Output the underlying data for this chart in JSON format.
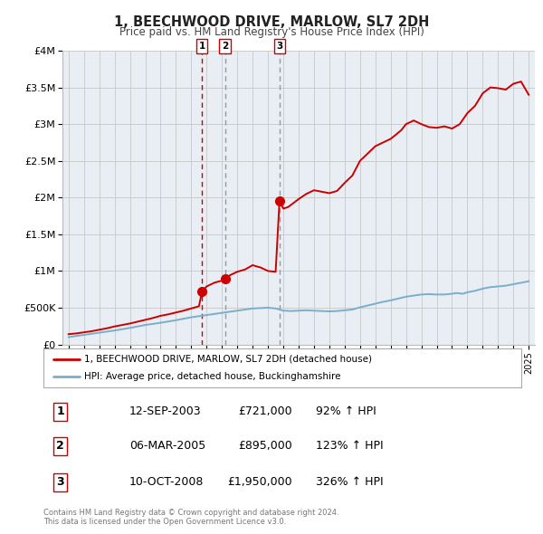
{
  "title": "1, BEECHWOOD DRIVE, MARLOW, SL7 2DH",
  "subtitle": "Price paid vs. HM Land Registry's House Price Index (HPI)",
  "legend_line1": "1, BEECHWOOD DRIVE, MARLOW, SL7 2DH (detached house)",
  "legend_line2": "HPI: Average price, detached house, Buckinghamshire",
  "red_line_color": "#cc0000",
  "blue_line_color": "#7aaecc",
  "grid_color": "#cccccc",
  "plot_bg_color": "#e8eef4",
  "ylim": [
    0,
    4000000
  ],
  "yticks": [
    0,
    500000,
    1000000,
    1500000,
    2000000,
    2500000,
    3000000,
    3500000,
    4000000
  ],
  "ytick_labels": [
    "£0",
    "£500K",
    "£1M",
    "£1.5M",
    "£2M",
    "£2.5M",
    "£3M",
    "£3.5M",
    "£4M"
  ],
  "xlim_start": 1994.6,
  "xlim_end": 2025.4,
  "transactions": [
    {
      "num": 1,
      "date": "12-SEP-2003",
      "price": 721000,
      "price_str": "£721,000",
      "pct": "92%",
      "x": 2003.7
    },
    {
      "num": 2,
      "date": "06-MAR-2005",
      "price": 895000,
      "price_str": "£895,000",
      "pct": "123%",
      "x": 2005.2
    },
    {
      "num": 3,
      "date": "10-OCT-2008",
      "price": 1950000,
      "price_str": "£1,950,000",
      "pct": "326%",
      "x": 2008.75
    }
  ],
  "footer_line1": "Contains HM Land Registry data © Crown copyright and database right 2024.",
  "footer_line2": "This data is licensed under the Open Government Licence v3.0.",
  "red_line_x": [
    1995.0,
    1995.5,
    1996.0,
    1996.5,
    1997.0,
    1997.5,
    1998.0,
    1998.5,
    1999.0,
    1999.5,
    2000.0,
    2000.5,
    2001.0,
    2001.5,
    2002.0,
    2002.5,
    2003.0,
    2003.5,
    2003.7,
    2004.0,
    2004.5,
    2005.0,
    2005.2,
    2005.5,
    2006.0,
    2006.5,
    2007.0,
    2007.3,
    2007.5,
    2008.0,
    2008.5,
    2008.75,
    2009.0,
    2009.3,
    2009.5,
    2010.0,
    2010.5,
    2011.0,
    2011.5,
    2012.0,
    2012.5,
    2013.0,
    2013.5,
    2014.0,
    2014.5,
    2015.0,
    2015.5,
    2016.0,
    2016.3,
    2016.7,
    2017.0,
    2017.5,
    2018.0,
    2018.5,
    2019.0,
    2019.5,
    2020.0,
    2020.5,
    2021.0,
    2021.5,
    2022.0,
    2022.5,
    2023.0,
    2023.5,
    2024.0,
    2024.5,
    2025.0
  ],
  "red_line_y": [
    140000,
    150000,
    165000,
    180000,
    200000,
    220000,
    245000,
    265000,
    285000,
    310000,
    335000,
    360000,
    390000,
    410000,
    435000,
    460000,
    490000,
    520000,
    721000,
    790000,
    840000,
    870000,
    895000,
    940000,
    990000,
    1020000,
    1080000,
    1060000,
    1050000,
    1000000,
    990000,
    1950000,
    1850000,
    1870000,
    1900000,
    1980000,
    2050000,
    2100000,
    2080000,
    2060000,
    2090000,
    2200000,
    2300000,
    2500000,
    2600000,
    2700000,
    2750000,
    2800000,
    2850000,
    2920000,
    3000000,
    3050000,
    3000000,
    2960000,
    2950000,
    2970000,
    2940000,
    3000000,
    3150000,
    3250000,
    3420000,
    3500000,
    3490000,
    3470000,
    3550000,
    3580000,
    3400000
  ],
  "blue_line_x": [
    1995.0,
    1996.0,
    1997.0,
    1998.0,
    1999.0,
    2000.0,
    2001.0,
    2002.0,
    2003.0,
    2004.0,
    2005.0,
    2006.0,
    2007.0,
    2008.0,
    2008.5,
    2009.0,
    2009.5,
    2010.0,
    2010.5,
    2011.0,
    2011.5,
    2012.0,
    2012.5,
    2013.0,
    2013.5,
    2014.0,
    2014.5,
    2015.0,
    2015.5,
    2016.0,
    2016.5,
    2017.0,
    2017.5,
    2018.0,
    2018.5,
    2019.0,
    2019.5,
    2020.0,
    2020.3,
    2020.7,
    2021.0,
    2021.5,
    2022.0,
    2022.5,
    2023.0,
    2023.5,
    2024.0,
    2024.5,
    2025.0
  ],
  "blue_line_y": [
    100000,
    130000,
    160000,
    190000,
    225000,
    265000,
    295000,
    330000,
    370000,
    400000,
    430000,
    460000,
    490000,
    500000,
    490000,
    460000,
    455000,
    460000,
    465000,
    460000,
    455000,
    450000,
    455000,
    465000,
    475000,
    505000,
    530000,
    555000,
    580000,
    600000,
    625000,
    650000,
    665000,
    680000,
    685000,
    680000,
    680000,
    690000,
    700000,
    690000,
    710000,
    730000,
    760000,
    780000,
    790000,
    800000,
    820000,
    840000,
    860000
  ],
  "marker_color": "#cc0000",
  "marker_size": 7,
  "vline1_color": "#cc0000",
  "vline23_color": "#999999"
}
